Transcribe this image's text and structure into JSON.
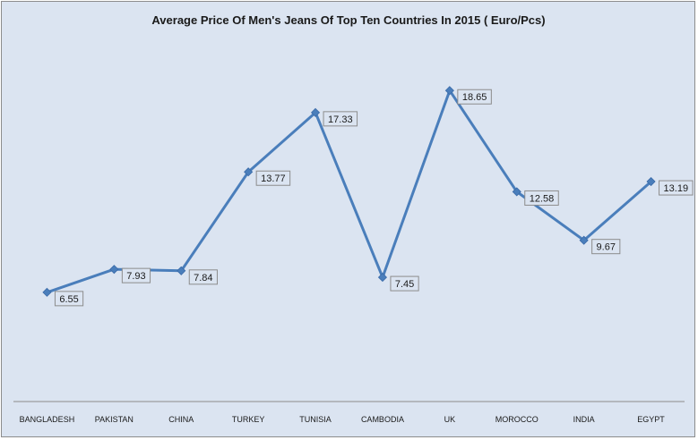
{
  "chart_data": {
    "type": "line",
    "title": "Average Price Of Men's Jeans Of Top Ten Countries In 2015 ( Euro/Pcs)",
    "xlabel": "",
    "ylabel": "",
    "categories": [
      "BANGLADESH",
      "PAKISTAN",
      "CHINA",
      "TURKEY",
      "TUNISIA",
      "CAMBODIA",
      "UK",
      "MOROCCO",
      "INDIA",
      "EGYPT"
    ],
    "values": [
      6.55,
      7.93,
      7.84,
      13.77,
      17.33,
      7.45,
      18.65,
      12.58,
      9.67,
      13.19
    ],
    "value_labels": [
      "6.55",
      "7.93",
      "7.84",
      "13.77",
      "17.33",
      "7.45",
      "18.65",
      "12.58",
      "9.67",
      "13.19"
    ],
    "ylim": [
      0,
      20
    ],
    "grid": false,
    "legend": "none",
    "colors": {
      "line": "#4a7ebb",
      "marker": "#4a7ebb",
      "plot_bg": "#dbe4f1",
      "axis": "#8c8c8c"
    }
  }
}
